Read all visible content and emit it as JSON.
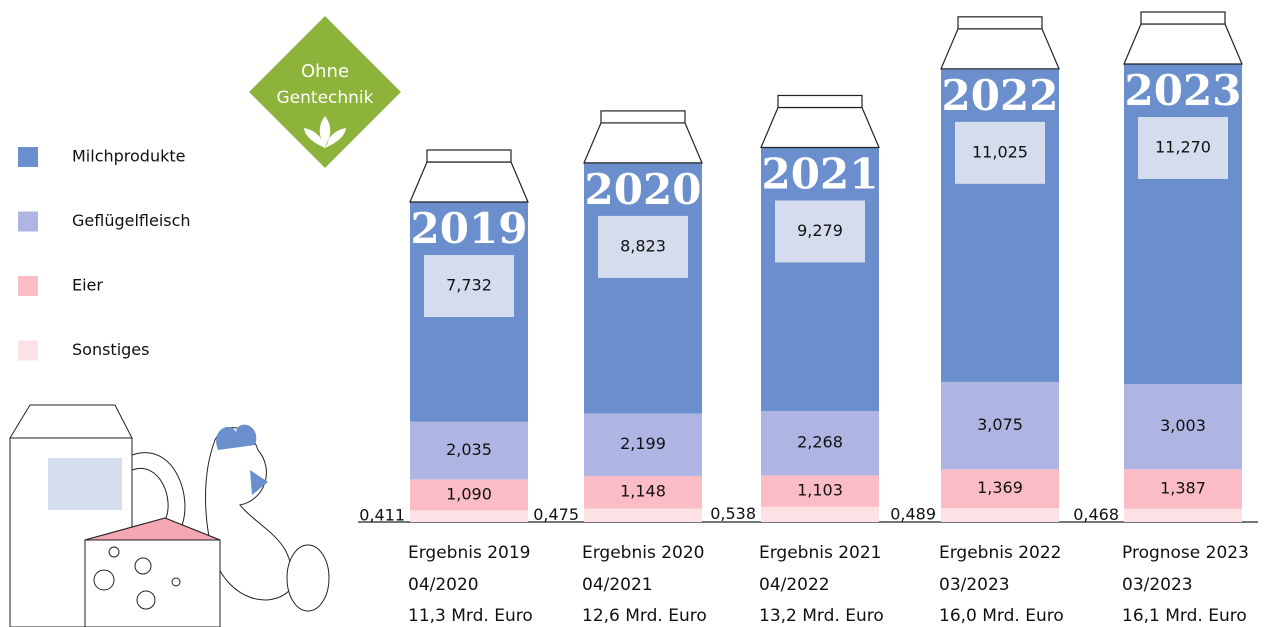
{
  "chart_data": {
    "type": "stacked-bar",
    "logo": {
      "line1": "Ohne",
      "line2": "Gentechnik"
    },
    "categories": [
      "Ergebnis 2019",
      "Ergebnis 2020",
      "Ergebnis 2021",
      "Ergebnis 2022",
      "Prognose 2023"
    ],
    "dates": [
      "04/2020",
      "04/2021",
      "04/2022",
      "03/2023",
      "03/2023"
    ],
    "totals": [
      "11,3 Mrd. Euro",
      "12,6 Mrd. Euro",
      "13,2 Mrd. Euro",
      "16,0 Mrd. Euro",
      "16,1 Mrd. Euro"
    ],
    "years": [
      "2019",
      "2020",
      "2021",
      "2022",
      "2023"
    ],
    "series": [
      {
        "name": "Milchprodukte",
        "color": "#6a8fcc",
        "values": [
          7.732,
          8.823,
          9.279,
          11.025,
          11.27
        ],
        "value_labels": [
          "7,732",
          "8,823",
          "9,279",
          "11,025",
          "11,270"
        ]
      },
      {
        "name": "Geflügelfleisch",
        "color": "#aeb5e2",
        "values": [
          2.035,
          2.199,
          2.268,
          3.075,
          3.003
        ],
        "value_labels": [
          "2,035",
          "2,199",
          "2,268",
          "3,075",
          "3,003"
        ]
      },
      {
        "name": "Eier",
        "color": "#fbbcc6",
        "values": [
          1.09,
          1.148,
          1.103,
          1.369,
          1.387
        ],
        "value_labels": [
          "1,090",
          "1,148",
          "1,103",
          "1,369",
          "1,387"
        ]
      },
      {
        "name": "Sonstiges",
        "color": "#fde2e5",
        "values": [
          0.411,
          0.475,
          0.538,
          0.489,
          0.468
        ],
        "value_labels": [
          "0,411",
          "0,475",
          "0,538",
          "0,489",
          "0,468"
        ]
      }
    ]
  }
}
